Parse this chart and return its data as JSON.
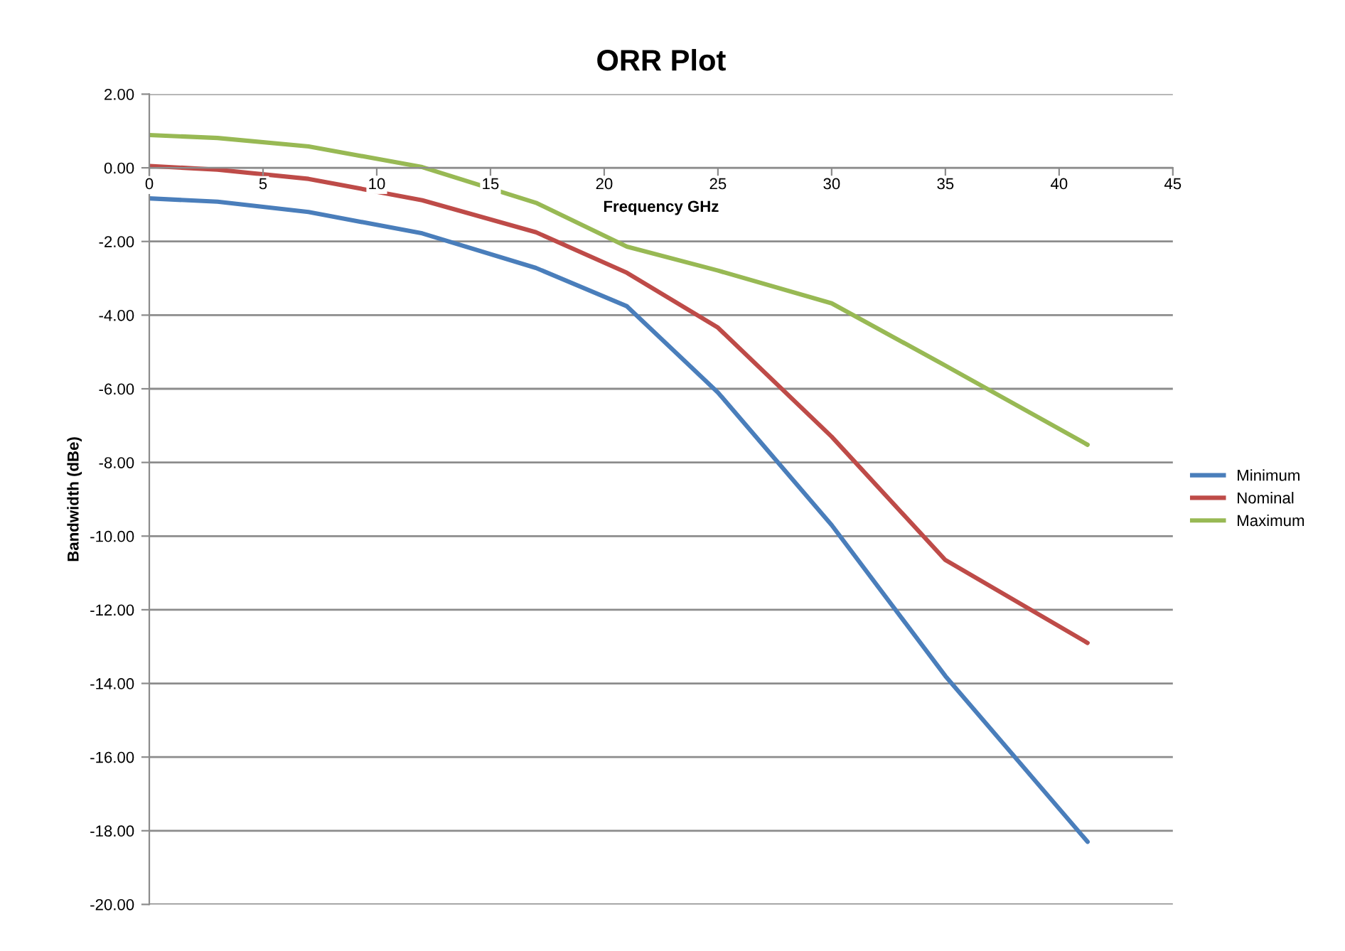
{
  "chart_data": {
    "type": "line",
    "title": "ORR Plot",
    "xlabel": "Frequency GHz",
    "ylabel": "Bandwidth (dBe)",
    "xlim": [
      0,
      45
    ],
    "xticks": [
      0,
      5,
      10,
      15,
      20,
      25,
      30,
      35,
      40,
      45
    ],
    "ylim": [
      -20,
      2
    ],
    "yticks": [
      {
        "value": 2,
        "label": "2.00"
      },
      {
        "value": 0,
        "label": "0.00"
      },
      {
        "value": -2,
        "label": "-2.00"
      },
      {
        "value": -4,
        "label": "-4.00"
      },
      {
        "value": -6,
        "label": "-6.00"
      },
      {
        "value": -8,
        "label": "-8.00"
      },
      {
        "value": -10,
        "label": "-10.00"
      },
      {
        "value": -12,
        "label": "-12.00"
      },
      {
        "value": -14,
        "label": "-14.00"
      },
      {
        "value": -16,
        "label": "-16.00"
      },
      {
        "value": -18,
        "label": "-18.00"
      },
      {
        "value": -20,
        "label": "-20.00"
      }
    ],
    "grid": "y",
    "legend": "right",
    "marker": "none",
    "line_style": "solid",
    "x": [
      0,
      3,
      7,
      12,
      17,
      21,
      25,
      30,
      35,
      41.25
    ],
    "series": [
      {
        "name": "Minimum",
        "color": "#4a7ebb",
        "values": [
          -0.83,
          -0.92,
          -1.2,
          -1.78,
          -2.72,
          -3.76,
          -6.1,
          -9.7,
          -13.8,
          -18.3
        ]
      },
      {
        "name": "Nominal",
        "color": "#be4b48",
        "values": [
          0.05,
          -0.05,
          -0.3,
          -0.88,
          -1.75,
          -2.85,
          -4.34,
          -7.3,
          -10.65,
          -12.9
        ]
      },
      {
        "name": "Maximum",
        "color": "#98b954",
        "values": [
          0.89,
          0.81,
          0.58,
          0.02,
          -0.95,
          -2.14,
          -2.79,
          -3.68,
          -5.37,
          -7.52
        ]
      }
    ]
  }
}
